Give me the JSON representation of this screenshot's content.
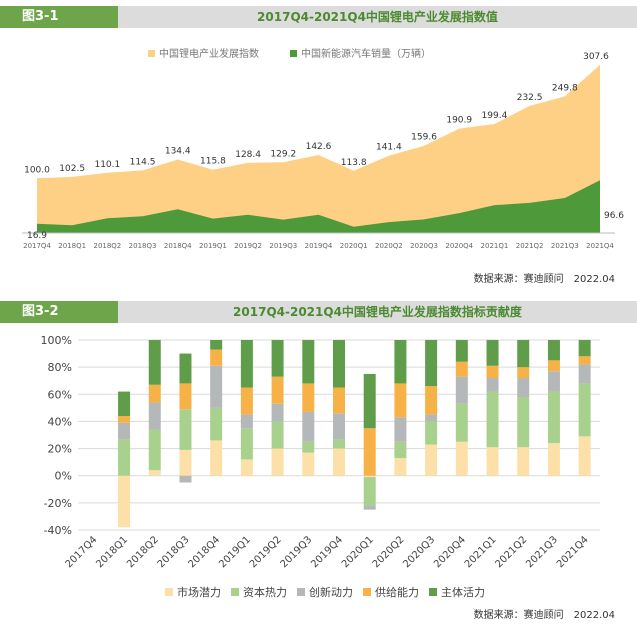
{
  "colors": {
    "header_green": "#6ea44a",
    "header_grey": "#dcdcdc",
    "index_fill": "#fdd085",
    "sales_fill": "#4e9a3a"
  },
  "panel1": {
    "tag": "图3-1",
    "title": "2017Q4-2021Q4中国锂电产业发展指数值",
    "source": "数据来源：赛迪顾问　2022.04"
  },
  "panel2": {
    "tag": "图3-2",
    "title": "2017Q4-2021Q4中国锂电产业发展指数指标贡献度",
    "source": "数据来源：赛迪顾问　2022.04"
  },
  "chart_data": [
    {
      "type": "area",
      "x": [
        "2017Q4",
        "2018Q1",
        "2018Q2",
        "2018Q3",
        "2018Q4",
        "2019Q1",
        "2019Q2",
        "2019Q3",
        "2019Q4",
        "2020Q1",
        "2020Q2",
        "2020Q3",
        "2020Q4",
        "2021Q1",
        "2021Q2",
        "2021Q3",
        "2021Q4"
      ],
      "series": [
        {
          "name": "中国锂电产业发展指数",
          "values": [
            100.0,
            102.5,
            110.1,
            114.5,
            134.4,
            115.8,
            128.4,
            129.2,
            142.6,
            113.8,
            141.4,
            159.6,
            190.9,
            199.4,
            232.5,
            249.8,
            307.6
          ],
          "labels": [
            "100.0",
            "102.5",
            "110.1",
            "114.5",
            "134.4",
            "115.8",
            "128.4",
            "129.2",
            "142.6",
            "113.8",
            "141.4",
            "159.6",
            "190.9",
            "199.4",
            "232.5",
            "249.8",
            "307.6"
          ]
        },
        {
          "name": "中国新能源汽车销量（万辆）",
          "values": [
            16.9,
            14.0,
            26.9,
            30.5,
            43.5,
            26.3,
            33.3,
            24.5,
            33.3,
            11.4,
            20.0,
            24.9,
            36.3,
            51.0,
            55.0,
            64.0,
            96.6
          ],
          "labels": [
            "16.9",
            "",
            "",
            "",
            "",
            "",
            "",
            "",
            "",
            "",
            "",
            "",
            "",
            "",
            "",
            "",
            "96.6"
          ]
        }
      ],
      "legend_position": "top-center",
      "ylim": [
        0,
        320
      ]
    },
    {
      "type": "bar",
      "stacked": true,
      "categories": [
        "2017Q4",
        "2018Q1",
        "2018Q2",
        "2018Q3",
        "2018Q4",
        "2019Q1",
        "2019Q2",
        "2019Q3",
        "2019Q4",
        "2020Q1",
        "2020Q2",
        "2020Q3",
        "2020Q4",
        "2021Q1",
        "2021Q2",
        "2021Q3",
        "2021Q4"
      ],
      "ylim": [
        -40,
        100
      ],
      "yticks": [
        "100%",
        "80%",
        "60%",
        "40%",
        "20%",
        "0%",
        "-20%",
        "-40%"
      ],
      "series": [
        {
          "name": "市场潜力",
          "color": "#fde0a8",
          "values": [
            null,
            -38,
            4,
            19,
            26,
            12,
            20,
            17,
            20,
            -1,
            13,
            23,
            25,
            21,
            21,
            24,
            29
          ]
        },
        {
          "name": "资本热力",
          "color": "#a9d18e",
          "values": [
            null,
            27,
            30,
            30,
            24,
            23,
            20,
            8,
            7,
            -21,
            12,
            17,
            28,
            41,
            37,
            38,
            39
          ]
        },
        {
          "name": "创新动力",
          "color": "#b4b8b9",
          "values": [
            null,
            12,
            20,
            -5,
            31,
            10,
            13,
            22,
            19,
            -3,
            18,
            5,
            20,
            10,
            14,
            15,
            14
          ]
        },
        {
          "name": "供给能力",
          "color": "#f7b247",
          "values": [
            null,
            5,
            13,
            19,
            12,
            20,
            20,
            21,
            19,
            35,
            25,
            21,
            11,
            9,
            8,
            8,
            6
          ]
        },
        {
          "name": "主体活力",
          "color": "#5f9d4a",
          "values": [
            null,
            18,
            33,
            22,
            7,
            35,
            27,
            32,
            35,
            40,
            32,
            34,
            16,
            19,
            20,
            15,
            12
          ]
        }
      ],
      "legend_position": "bottom"
    }
  ]
}
